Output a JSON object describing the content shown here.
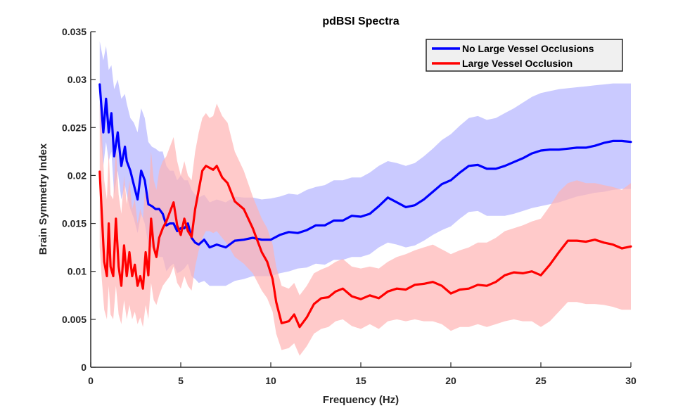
{
  "chart_data": {
    "type": "line",
    "title": "pdBSI Spectra",
    "xlabel": "Frequency (Hz)",
    "ylabel": "Brain Symmetry Index",
    "xlim": [
      0,
      30
    ],
    "ylim": [
      0,
      0.035
    ],
    "x_ticks": [
      0,
      5,
      10,
      15,
      20,
      25,
      30
    ],
    "x_tick_labels": [
      "0",
      "5",
      "10",
      "15",
      "20",
      "25",
      "30"
    ],
    "y_ticks": [
      0,
      0.005,
      0.01,
      0.015,
      0.02,
      0.025,
      0.03,
      0.035
    ],
    "y_tick_labels": [
      "0",
      "0.005",
      "0.01",
      "0.015",
      "0.02",
      "0.025",
      "0.03",
      "0.035"
    ],
    "grid": false,
    "legend_position": "top-right",
    "series": [
      {
        "name": "No Large Vessel Occlusions",
        "color": "#0000ff",
        "band_color": "#b3b3ff",
        "x": [
          0.5,
          0.7,
          0.85,
          1.0,
          1.15,
          1.3,
          1.5,
          1.7,
          1.9,
          2.0,
          2.2,
          2.4,
          2.6,
          2.8,
          3.0,
          3.2,
          3.4,
          3.6,
          3.8,
          4.0,
          4.2,
          4.4,
          4.6,
          4.8,
          5.0,
          5.2,
          5.4,
          5.6,
          5.8,
          6.0,
          6.3,
          6.6,
          7.0,
          7.5,
          8.0,
          8.5,
          9.0,
          9.5,
          10.0,
          10.5,
          11.0,
          11.5,
          12.0,
          12.5,
          13.0,
          13.5,
          14.0,
          14.5,
          15.0,
          15.5,
          16.0,
          16.5,
          17.0,
          17.5,
          18.0,
          18.5,
          19.0,
          19.5,
          20.0,
          20.5,
          21.0,
          21.5,
          22.0,
          22.5,
          23.0,
          23.5,
          24.0,
          24.5,
          25.0,
          25.5,
          26.0,
          26.5,
          27.0,
          27.5,
          28.0,
          28.5,
          29.0,
          29.5,
          30.0
        ],
        "y": [
          0.0295,
          0.0245,
          0.028,
          0.0245,
          0.0265,
          0.022,
          0.0245,
          0.021,
          0.023,
          0.0215,
          0.0205,
          0.019,
          0.0175,
          0.0205,
          0.0195,
          0.017,
          0.0168,
          0.0165,
          0.0165,
          0.016,
          0.0148,
          0.015,
          0.015,
          0.0142,
          0.0145,
          0.0145,
          0.015,
          0.0135,
          0.013,
          0.0128,
          0.0133,
          0.0125,
          0.0128,
          0.0125,
          0.0132,
          0.0133,
          0.0135,
          0.0133,
          0.0133,
          0.0138,
          0.0141,
          0.014,
          0.0143,
          0.0148,
          0.0148,
          0.0153,
          0.0153,
          0.0158,
          0.0157,
          0.016,
          0.0168,
          0.0177,
          0.0172,
          0.0167,
          0.0169,
          0.0175,
          0.0183,
          0.0191,
          0.0195,
          0.0203,
          0.021,
          0.0211,
          0.0207,
          0.0207,
          0.021,
          0.0214,
          0.0218,
          0.0223,
          0.0226,
          0.0227,
          0.0227,
          0.0228,
          0.0229,
          0.0229,
          0.0231,
          0.0234,
          0.0236,
          0.0236,
          0.0235
        ],
        "upper": [
          0.034,
          0.032,
          0.0335,
          0.031,
          0.0315,
          0.029,
          0.03,
          0.028,
          0.0285,
          0.0275,
          0.026,
          0.0255,
          0.0245,
          0.027,
          0.026,
          0.0235,
          0.023,
          0.0228,
          0.0225,
          0.0225,
          0.021,
          0.0205,
          0.0205,
          0.0195,
          0.02,
          0.0195,
          0.0195,
          0.0185,
          0.018,
          0.0177,
          0.018,
          0.0172,
          0.0175,
          0.0172,
          0.0178,
          0.0177,
          0.0177,
          0.0175,
          0.0176,
          0.0178,
          0.0181,
          0.018,
          0.0185,
          0.0188,
          0.019,
          0.0195,
          0.0195,
          0.0198,
          0.0198,
          0.0203,
          0.021,
          0.0215,
          0.0213,
          0.021,
          0.0213,
          0.022,
          0.0228,
          0.0237,
          0.0243,
          0.0252,
          0.026,
          0.0262,
          0.0258,
          0.026,
          0.0265,
          0.027,
          0.0276,
          0.0282,
          0.0286,
          0.0288,
          0.029,
          0.0291,
          0.0292,
          0.0293,
          0.0294,
          0.0295,
          0.0296,
          0.0296,
          0.0296
        ],
        "lower": [
          0.025,
          0.021,
          0.0235,
          0.0215,
          0.0225,
          0.018,
          0.0205,
          0.0175,
          0.019,
          0.018,
          0.0165,
          0.0155,
          0.014,
          0.016,
          0.015,
          0.0128,
          0.0125,
          0.012,
          0.0115,
          0.0115,
          0.01,
          0.0105,
          0.0108,
          0.0098,
          0.01,
          0.0103,
          0.0108,
          0.0095,
          0.0092,
          0.0088,
          0.009,
          0.0085,
          0.0085,
          0.0085,
          0.009,
          0.0092,
          0.0095,
          0.0095,
          0.0095,
          0.0098,
          0.01,
          0.0103,
          0.0104,
          0.0108,
          0.0107,
          0.0112,
          0.0112,
          0.0115,
          0.0115,
          0.0118,
          0.0125,
          0.013,
          0.0128,
          0.0125,
          0.0127,
          0.0132,
          0.0138,
          0.0143,
          0.0147,
          0.0155,
          0.0162,
          0.0163,
          0.0158,
          0.0158,
          0.0158,
          0.016,
          0.0163,
          0.0166,
          0.0168,
          0.017,
          0.0172,
          0.0175,
          0.0178,
          0.018,
          0.0182,
          0.0183,
          0.0185,
          0.0186,
          0.0186
        ]
      },
      {
        "name": "Large Vessel Occlusion",
        "color": "#ff0000",
        "band_color": "#ffb3b3",
        "x": [
          0.5,
          0.6,
          0.75,
          0.9,
          1.0,
          1.1,
          1.25,
          1.4,
          1.55,
          1.7,
          1.85,
          2.0,
          2.15,
          2.3,
          2.45,
          2.6,
          2.75,
          2.9,
          3.05,
          3.2,
          3.35,
          3.5,
          3.65,
          3.8,
          4.0,
          4.2,
          4.4,
          4.6,
          4.8,
          5.0,
          5.2,
          5.4,
          5.6,
          5.8,
          6.0,
          6.2,
          6.4,
          6.6,
          6.8,
          7.0,
          7.3,
          7.6,
          8.0,
          8.5,
          9.0,
          9.5,
          9.8,
          10.1,
          10.3,
          10.6,
          11.0,
          11.3,
          11.6,
          12.0,
          12.4,
          12.8,
          13.2,
          13.6,
          14.0,
          14.5,
          15.0,
          15.5,
          16.0,
          16.5,
          17.0,
          17.5,
          18.0,
          18.5,
          19.0,
          19.5,
          20.0,
          20.5,
          21.0,
          21.5,
          22.0,
          22.5,
          23.0,
          23.5,
          24.0,
          24.5,
          25.0,
          25.5,
          26.0,
          26.5,
          27.0,
          27.5,
          28.0,
          28.5,
          29.0,
          29.5,
          30.0
        ],
        "y": [
          0.0204,
          0.0165,
          0.011,
          0.0095,
          0.015,
          0.0105,
          0.0095,
          0.0155,
          0.0105,
          0.0085,
          0.0127,
          0.0095,
          0.012,
          0.0095,
          0.0107,
          0.0085,
          0.0095,
          0.0082,
          0.012,
          0.0096,
          0.0155,
          0.0125,
          0.0115,
          0.0135,
          0.0145,
          0.0152,
          0.0162,
          0.0172,
          0.0148,
          0.0138,
          0.0155,
          0.0142,
          0.0136,
          0.0165,
          0.0185,
          0.0205,
          0.021,
          0.0208,
          0.0206,
          0.021,
          0.0198,
          0.0192,
          0.0173,
          0.0165,
          0.0145,
          0.012,
          0.011,
          0.0092,
          0.0068,
          0.0046,
          0.0048,
          0.0055,
          0.0042,
          0.0052,
          0.0066,
          0.0072,
          0.0073,
          0.0079,
          0.0082,
          0.0074,
          0.0071,
          0.0075,
          0.0072,
          0.0079,
          0.0082,
          0.0081,
          0.0086,
          0.0087,
          0.0089,
          0.0085,
          0.0077,
          0.0081,
          0.0082,
          0.0086,
          0.0085,
          0.0089,
          0.0096,
          0.0099,
          0.0098,
          0.01,
          0.0096,
          0.0107,
          0.012,
          0.0132,
          0.0132,
          0.0131,
          0.0133,
          0.013,
          0.0128,
          0.0124,
          0.0126
        ],
        "upper": [
          0.0275,
          0.025,
          0.0195,
          0.0175,
          0.0225,
          0.018,
          0.0175,
          0.023,
          0.018,
          0.016,
          0.02,
          0.017,
          0.0195,
          0.0165,
          0.0175,
          0.015,
          0.0165,
          0.0155,
          0.0195,
          0.017,
          0.0225,
          0.0195,
          0.0185,
          0.0205,
          0.0215,
          0.022,
          0.023,
          0.024,
          0.0215,
          0.02,
          0.0215,
          0.02,
          0.0195,
          0.0225,
          0.0245,
          0.026,
          0.0265,
          0.026,
          0.0262,
          0.0275,
          0.0262,
          0.0255,
          0.0225,
          0.0205,
          0.0178,
          0.0155,
          0.0145,
          0.0128,
          0.0105,
          0.0085,
          0.0082,
          0.0088,
          0.0075,
          0.0085,
          0.0098,
          0.0102,
          0.0105,
          0.011,
          0.0113,
          0.0105,
          0.0103,
          0.0105,
          0.0103,
          0.011,
          0.0115,
          0.0118,
          0.0122,
          0.0125,
          0.0128,
          0.0123,
          0.0118,
          0.0122,
          0.0125,
          0.013,
          0.013,
          0.0135,
          0.0142,
          0.0145,
          0.0148,
          0.0152,
          0.0155,
          0.0168,
          0.0183,
          0.0192,
          0.0195,
          0.0192,
          0.0192,
          0.019,
          0.0188,
          0.0185,
          0.0192
        ],
        "lower": [
          0.0125,
          0.0095,
          0.006,
          0.005,
          0.0085,
          0.0055,
          0.005,
          0.0085,
          0.0055,
          0.0045,
          0.007,
          0.005,
          0.0065,
          0.005,
          0.0058,
          0.0045,
          0.0052,
          0.0042,
          0.0065,
          0.005,
          0.0088,
          0.007,
          0.0065,
          0.0075,
          0.0085,
          0.009,
          0.0095,
          0.0105,
          0.0088,
          0.0082,
          0.0095,
          0.0085,
          0.008,
          0.0105,
          0.0122,
          0.0135,
          0.0142,
          0.0142,
          0.014,
          0.0142,
          0.0135,
          0.0128,
          0.0115,
          0.0108,
          0.0098,
          0.008,
          0.0072,
          0.0058,
          0.0035,
          0.0018,
          0.002,
          0.0025,
          0.0012,
          0.0022,
          0.0035,
          0.004,
          0.0042,
          0.0048,
          0.005,
          0.0043,
          0.004,
          0.0045,
          0.004,
          0.0048,
          0.005,
          0.0048,
          0.005,
          0.0048,
          0.0048,
          0.0045,
          0.0038,
          0.0042,
          0.0042,
          0.0045,
          0.0042,
          0.0045,
          0.0048,
          0.005,
          0.0048,
          0.0048,
          0.0042,
          0.0048,
          0.0058,
          0.0068,
          0.0068,
          0.0066,
          0.0066,
          0.0065,
          0.0063,
          0.006,
          0.006
        ]
      }
    ]
  }
}
